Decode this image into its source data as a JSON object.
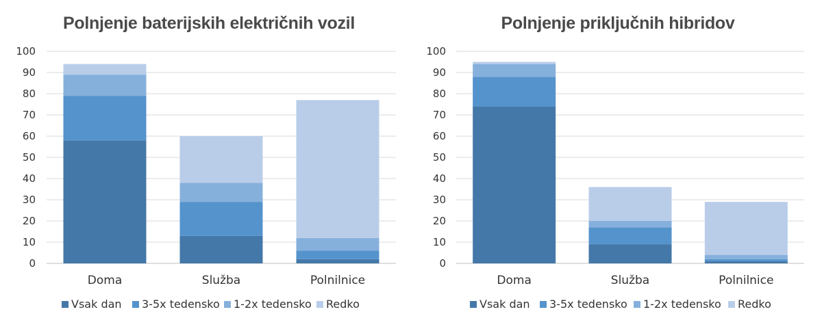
{
  "legend_labels": [
    "Vsak dan",
    "3-5x tedensko",
    "1-2x tedensko",
    "Redko"
  ],
  "series_colors": [
    "#4478a8",
    "#5593cc",
    "#86b0dc",
    "#b9cde9"
  ],
  "chart_data": [
    {
      "type": "bar",
      "stacked": true,
      "title": "Polnjenje baterijskih električnih vozil",
      "categories": [
        "Doma",
        "Služba",
        "Polnilnice"
      ],
      "series": [
        {
          "name": "Vsak dan",
          "values": [
            58,
            13,
            2
          ]
        },
        {
          "name": "3-5x tedensko",
          "values": [
            21,
            16,
            4
          ]
        },
        {
          "name": "1-2x tedensko",
          "values": [
            10,
            9,
            6
          ]
        },
        {
          "name": "Redko",
          "values": [
            5,
            22,
            65
          ]
        }
      ],
      "ylim": [
        0,
        100
      ],
      "yticks": [
        0,
        10,
        20,
        30,
        40,
        50,
        60,
        70,
        80,
        90,
        100
      ],
      "grid": true,
      "legend_position": "bottom"
    },
    {
      "type": "bar",
      "stacked": true,
      "title": "Polnjenje priključnih hibridov",
      "categories": [
        "Doma",
        "Služba",
        "Polnilnice"
      ],
      "series": [
        {
          "name": "Vsak dan",
          "values": [
            74,
            9,
            1
          ]
        },
        {
          "name": "3-5x tedensko",
          "values": [
            14,
            8,
            1
          ]
        },
        {
          "name": "1-2x tedensko",
          "values": [
            6,
            3,
            2
          ]
        },
        {
          "name": "Redko",
          "values": [
            1,
            16,
            25
          ]
        }
      ],
      "ylim": [
        0,
        100
      ],
      "yticks": [
        0,
        10,
        20,
        30,
        40,
        50,
        60,
        70,
        80,
        90,
        100
      ],
      "grid": true,
      "legend_position": "bottom"
    }
  ]
}
